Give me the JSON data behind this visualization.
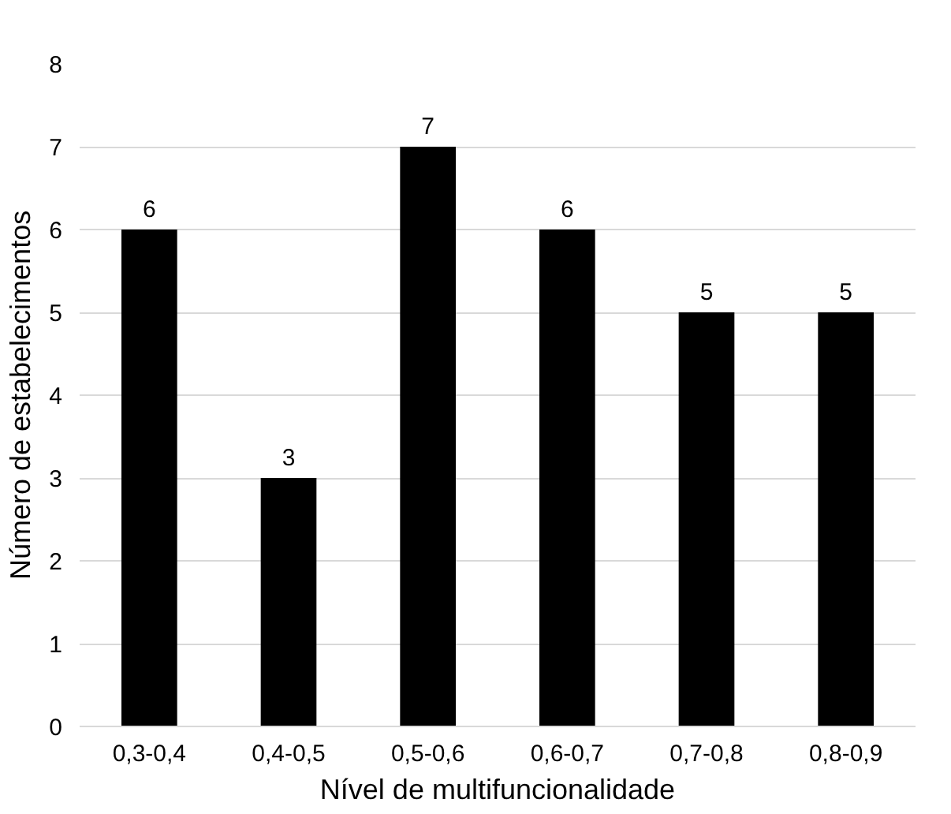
{
  "chart_data": {
    "type": "bar",
    "xlabel": "Nível de multifuncionalidade",
    "ylabel": "Número de estabelecimentos",
    "categories": [
      "0,3-0,4",
      "0,4-0,5",
      "0,5-0,6",
      "0,6-0,7",
      "0,7-0,8",
      "0,8-0,9"
    ],
    "values": [
      6,
      3,
      7,
      6,
      5,
      5
    ],
    "color": "#000000",
    "ylim": [
      0,
      8
    ],
    "yticks": [
      0,
      1,
      2,
      3,
      4,
      5,
      6,
      7,
      8
    ],
    "grid": "y",
    "data_labels": true
  }
}
